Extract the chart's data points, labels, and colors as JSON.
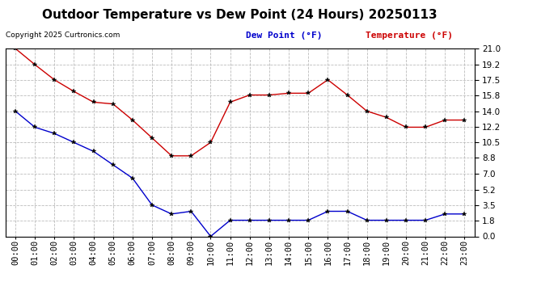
{
  "title": "Outdoor Temperature vs Dew Point (24 Hours) 20250113",
  "copyright": "Copyright 2025 Curtronics.com",
  "legend_dew": "Dew Point (°F)",
  "legend_temp": "Temperature (°F)",
  "x_labels": [
    "00:00",
    "01:00",
    "02:00",
    "03:00",
    "04:00",
    "05:00",
    "06:00",
    "07:00",
    "08:00",
    "09:00",
    "10:00",
    "11:00",
    "12:00",
    "13:00",
    "14:00",
    "15:00",
    "16:00",
    "17:00",
    "18:00",
    "19:00",
    "20:00",
    "21:00",
    "22:00",
    "23:00"
  ],
  "temperature": [
    21.0,
    19.2,
    17.5,
    16.2,
    15.0,
    14.8,
    13.0,
    11.0,
    9.0,
    9.0,
    10.5,
    15.0,
    15.8,
    15.8,
    16.0,
    16.0,
    17.5,
    15.8,
    14.0,
    13.3,
    12.2,
    12.2,
    13.0,
    13.0
  ],
  "dew_point": [
    14.0,
    12.2,
    11.5,
    10.5,
    9.5,
    8.0,
    6.5,
    3.5,
    2.5,
    2.8,
    0.0,
    1.8,
    1.8,
    1.8,
    1.8,
    1.8,
    2.8,
    2.8,
    1.8,
    1.8,
    1.8,
    1.8,
    2.5,
    2.5
  ],
  "ylim": [
    0.0,
    21.0
  ],
  "yticks": [
    0.0,
    1.8,
    3.5,
    5.2,
    7.0,
    8.8,
    10.5,
    12.2,
    14.0,
    15.8,
    17.5,
    19.2,
    21.0
  ],
  "temp_color": "#cc0000",
  "dew_color": "#0000cc",
  "bg_color": "#ffffff",
  "grid_color": "#bbbbbb",
  "title_fontsize": 11,
  "tick_fontsize": 7.5,
  "legend_fontsize": 8
}
